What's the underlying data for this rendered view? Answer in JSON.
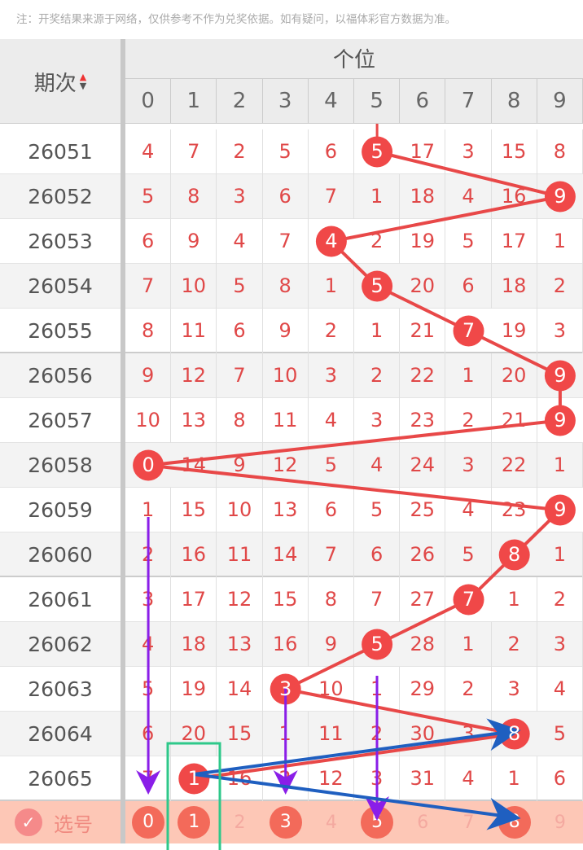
{
  "note": "注：开奖结果来源于网络，仅供参考不作为兑奖依据。如有疑问，以福体彩官方数据为准。",
  "header": {
    "period_label": "期次",
    "position_title": "个位",
    "digits": [
      "0",
      "1",
      "2",
      "3",
      "4",
      "5",
      "6",
      "7",
      "8",
      "9"
    ],
    "sort_up": "▲",
    "sort_down": "▼"
  },
  "rows": [
    {
      "period": "26051",
      "winning": 5,
      "cells": [
        "4",
        "7",
        "2",
        "5",
        "6",
        "5",
        "17",
        "3",
        "15",
        "8"
      ]
    },
    {
      "period": "26052",
      "winning": 9,
      "cells": [
        "5",
        "8",
        "3",
        "6",
        "7",
        "1",
        "18",
        "4",
        "16",
        "9"
      ]
    },
    {
      "period": "26053",
      "winning": 4,
      "cells": [
        "6",
        "9",
        "4",
        "7",
        "4",
        "2",
        "19",
        "5",
        "17",
        "1"
      ]
    },
    {
      "period": "26054",
      "winning": 5,
      "cells": [
        "7",
        "10",
        "5",
        "8",
        "1",
        "5",
        "20",
        "6",
        "18",
        "2"
      ]
    },
    {
      "period": "26055",
      "winning": 7,
      "cells": [
        "8",
        "11",
        "6",
        "9",
        "2",
        "1",
        "21",
        "7",
        "19",
        "3"
      ]
    },
    {
      "period": "26056",
      "winning": 9,
      "cells": [
        "9",
        "12",
        "7",
        "10",
        "3",
        "2",
        "22",
        "1",
        "20",
        "9"
      ]
    },
    {
      "period": "26057",
      "winning": 9,
      "cells": [
        "10",
        "13",
        "8",
        "11",
        "4",
        "3",
        "23",
        "2",
        "21",
        "9"
      ]
    },
    {
      "period": "26058",
      "winning": 0,
      "cells": [
        "0",
        "14",
        "9",
        "12",
        "5",
        "4",
        "24",
        "3",
        "22",
        "1"
      ]
    },
    {
      "period": "26059",
      "winning": 9,
      "cells": [
        "1",
        "15",
        "10",
        "13",
        "6",
        "5",
        "25",
        "4",
        "23",
        "9"
      ]
    },
    {
      "period": "26060",
      "winning": 8,
      "cells": [
        "2",
        "16",
        "11",
        "14",
        "7",
        "6",
        "26",
        "5",
        "8",
        "1"
      ]
    },
    {
      "period": "26061",
      "winning": 7,
      "cells": [
        "3",
        "17",
        "12",
        "15",
        "8",
        "7",
        "27",
        "7",
        "1",
        "2"
      ]
    },
    {
      "period": "26062",
      "winning": 5,
      "cells": [
        "4",
        "18",
        "13",
        "16",
        "9",
        "5",
        "28",
        "1",
        "2",
        "3"
      ]
    },
    {
      "period": "26063",
      "winning": 3,
      "cells": [
        "5",
        "19",
        "14",
        "3",
        "10",
        "1",
        "29",
        "2",
        "3",
        "4"
      ]
    },
    {
      "period": "26064",
      "winning": 8,
      "cells": [
        "6",
        "20",
        "15",
        "1",
        "11",
        "2",
        "30",
        "3",
        "8",
        "5"
      ]
    },
    {
      "period": "26065",
      "winning": 1,
      "cells": [
        "7",
        "1",
        "16",
        "2",
        "12",
        "3",
        "31",
        "4",
        "1",
        "6"
      ]
    }
  ],
  "selection": {
    "label": "选号",
    "check_icon": "✓",
    "digits": [
      "0",
      "1",
      "2",
      "3",
      "4",
      "5",
      "6",
      "7",
      "8",
      "9"
    ],
    "selected": [
      0,
      1,
      3,
      5,
      8
    ]
  },
  "colors": {
    "ball": "#f04848",
    "line": "#e84848",
    "purple_arrow": "#8a1ee8",
    "blue_arrow": "#1f5fc0",
    "highlight_box": "#2ec88a"
  }
}
